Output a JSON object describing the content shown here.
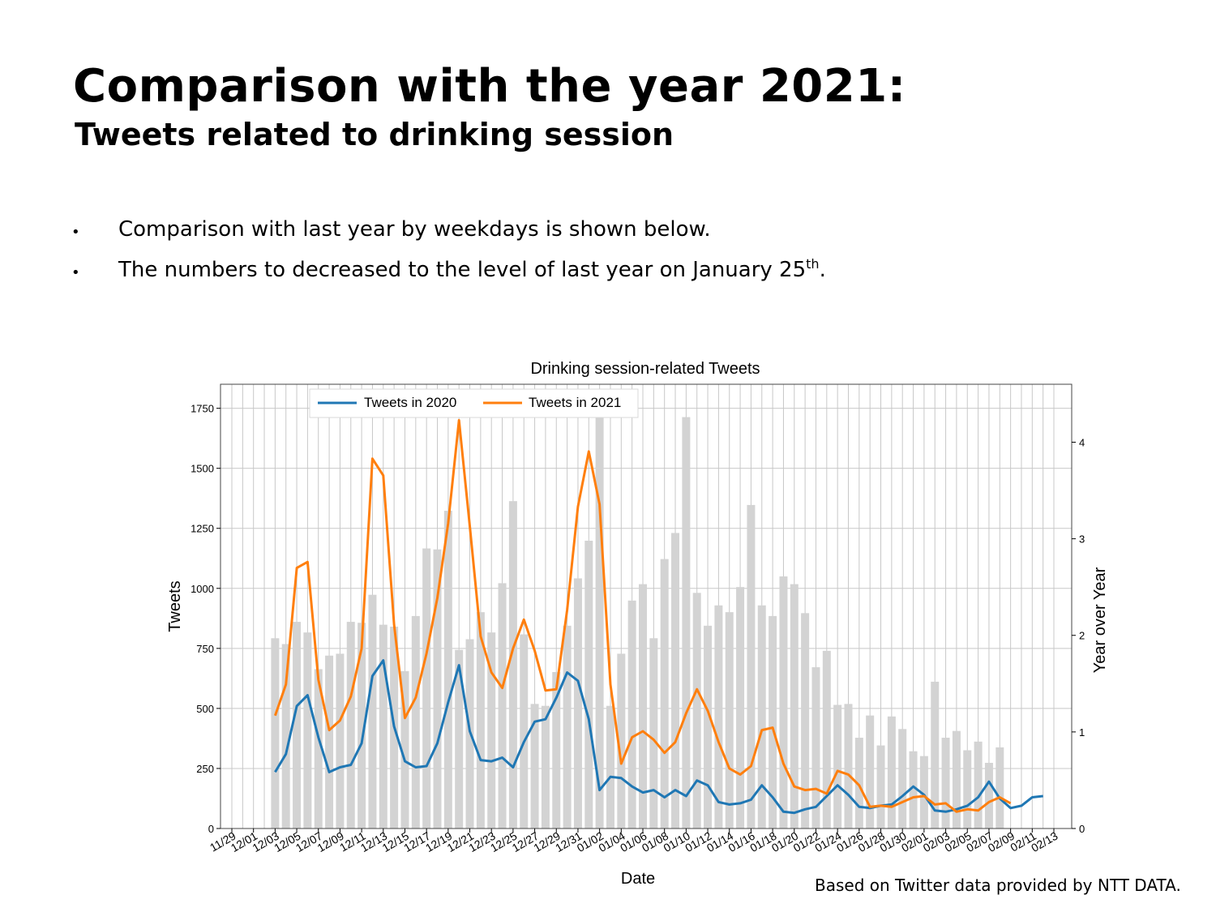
{
  "slide": {
    "title": "Comparison with the year 2021:",
    "subtitle": "Tweets related to drinking session",
    "bullets": [
      {
        "text": "Comparison with last year by weekdays is shown below.",
        "sup": ""
      },
      {
        "text": "The numbers to decreased to the level of last year on January 25",
        "sup": "th",
        "tail": "."
      }
    ],
    "bullet_glyph": "•",
    "source": "Based on Twitter data provided by NTT DATA."
  },
  "chart_data": {
    "type": "line",
    "title": "Drinking session-related Tweets",
    "xlabel": "Date",
    "ylabel": "Tweets",
    "y2label": "Year over Year",
    "ylim": [
      0,
      1850
    ],
    "y2lim": [
      0,
      4.6
    ],
    "yticks": [
      0,
      250,
      500,
      750,
      1000,
      1250,
      1500,
      1750
    ],
    "y2ticks": [
      0,
      1,
      2,
      3,
      4
    ],
    "x_tick_labels": [
      "11/29",
      "12/01",
      "12/03",
      "12/05",
      "12/07",
      "12/09",
      "12/11",
      "12/13",
      "12/15",
      "12/17",
      "12/19",
      "12/21",
      "12/23",
      "12/25",
      "12/27",
      "12/29",
      "12/31",
      "01/02",
      "01/04",
      "01/06",
      "01/08",
      "01/10",
      "01/12",
      "01/14",
      "01/16",
      "01/18",
      "01/20",
      "01/22",
      "01/24",
      "01/26",
      "01/28",
      "01/30",
      "02/01",
      "02/03",
      "02/05",
      "02/07",
      "02/09",
      "02/11",
      "02/13"
    ],
    "grid": true,
    "legend_position": "top-center",
    "colors": {
      "series2020": "#1f77b4",
      "series2021": "#ff7f0e",
      "bars": "#d3d3d3"
    },
    "series": [
      {
        "name": "Tweets in 2020",
        "axis": "left",
        "start": "12/03",
        "values": [
          235,
          310,
          510,
          555,
          380,
          235,
          255,
          265,
          355,
          635,
          700,
          425,
          280,
          255,
          260,
          355,
          525,
          680,
          405,
          285,
          280,
          295,
          255,
          360,
          445,
          455,
          545,
          650,
          615,
          455,
          160,
          215,
          210,
          175,
          150,
          160,
          130,
          160,
          135,
          200,
          180,
          110,
          100,
          105,
          120,
          180,
          130,
          70,
          65,
          80,
          90,
          135,
          180,
          140,
          90,
          85,
          95,
          100,
          135,
          175,
          140,
          75,
          70,
          80,
          95,
          130,
          195,
          125,
          85,
          95,
          130,
          135
        ]
      },
      {
        "name": "Tweets in 2021",
        "axis": "left",
        "start": "12/03",
        "values": [
          470,
          600,
          1085,
          1110,
          620,
          410,
          450,
          550,
          750,
          1540,
          1470,
          850,
          460,
          545,
          730,
          960,
          1270,
          1700,
          1260,
          800,
          650,
          585,
          750,
          870,
          740,
          575,
          580,
          910,
          1340,
          1570,
          1350,
          600,
          270,
          380,
          405,
          370,
          315,
          360,
          480,
          580,
          490,
          360,
          250,
          225,
          260,
          410,
          420,
          270,
          175,
          160,
          165,
          145,
          240,
          225,
          180,
          90,
          95,
          90,
          110,
          130,
          135,
          100,
          105,
          70,
          80,
          75,
          110,
          130,
          105
        ]
      },
      {
        "name": "Year over Year",
        "axis": "right",
        "type": "bar",
        "start": "12/03",
        "values": [
          1.97,
          1.91,
          2.14,
          2.03,
          1.65,
          1.79,
          1.81,
          2.14,
          2.13,
          2.42,
          2.11,
          2.09,
          1.63,
          2.2,
          2.9,
          2.89,
          3.29,
          1.85,
          1.96,
          2.24,
          2.03,
          2.54,
          3.39,
          2.01,
          1.29,
          1.27,
          1.62,
          2.1,
          2.59,
          2.98,
          4.3,
          1.27,
          1.81,
          2.36,
          2.53,
          1.97,
          2.79,
          3.06,
          4.26,
          2.44,
          2.1,
          2.31,
          2.24,
          2.5,
          3.35,
          2.31,
          2.2,
          2.61,
          2.53,
          2.23,
          1.67,
          1.84,
          1.28,
          1.29,
          0.94,
          1.17,
          0.86,
          1.16,
          1.03,
          0.8,
          0.75,
          1.52,
          0.94,
          1.01,
          0.81,
          0.9,
          0.68,
          0.84
        ]
      }
    ]
  }
}
